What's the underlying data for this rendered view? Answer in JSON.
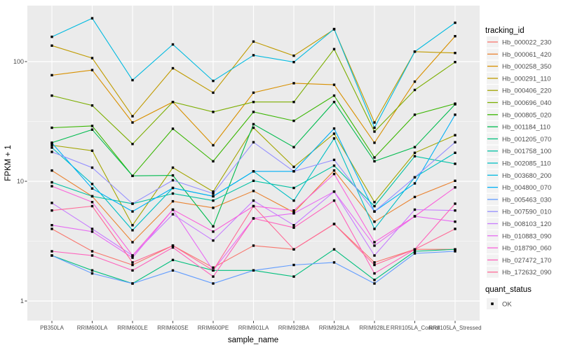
{
  "chart_data": {
    "type": "line",
    "title": "",
    "xlabel": "sample_name",
    "ylabel": "FPKM + 1",
    "yscale": "log10",
    "ylim": [
      1,
      250
    ],
    "y_ticks": [
      1,
      10,
      100
    ],
    "grid": true,
    "legend_position": "right",
    "legend_title": "tracking_id",
    "point_shape": "filled-square",
    "point_color": "#000000",
    "categories": [
      "PB350LA",
      "RRIM600LA",
      "RRIM600LE",
      "RRIM600SE",
      "RRIM600PE",
      "RRIM901LA",
      "RRIM928BA",
      "RRIM928LA",
      "RRIM928LE",
      "RRII105LA_Control",
      "RRII105LA_Stressed"
    ],
    "series": [
      {
        "name": "Hb_000022_230",
        "color": "#F8766D",
        "values": [
          4.0,
          2.6,
          2.0,
          2.9,
          1.9,
          2.9,
          2.7,
          4.4,
          2.1,
          2.7,
          2.7
        ]
      },
      {
        "name": "Hb_000061_420",
        "color": "#EA8331",
        "values": [
          12.3,
          7.5,
          3.1,
          6.8,
          6.0,
          8.3,
          5.5,
          12.3,
          4.6,
          7.4,
          10.1
        ]
      },
      {
        "name": "Hb_000258_350",
        "color": "#D89000",
        "values": [
          77,
          85,
          31,
          46,
          20,
          55,
          66,
          64,
          21,
          68,
          163
        ]
      },
      {
        "name": "Hb_000291_110",
        "color": "#C09B00",
        "values": [
          136,
          107,
          35,
          88,
          55,
          147,
          112,
          186,
          31,
          121,
          118
        ]
      },
      {
        "name": "Hb_000406_220",
        "color": "#A3A500",
        "values": [
          20,
          18,
          4.3,
          13,
          8.2,
          28,
          13.2,
          25,
          6.7,
          17.3,
          24.3
        ]
      },
      {
        "name": "Hb_000696_040",
        "color": "#7CAE00",
        "values": [
          52,
          43,
          20.5,
          46,
          38,
          46,
          46,
          127,
          26,
          58,
          99
        ]
      },
      {
        "name": "Hb_000805_020",
        "color": "#39B600",
        "values": [
          28,
          29,
          11.1,
          27.5,
          14.7,
          38,
          32,
          52,
          15.8,
          36,
          44.5
        ]
      },
      {
        "name": "Hb_001184_110",
        "color": "#00BB4E",
        "values": [
          21,
          27,
          11.1,
          11.2,
          4.2,
          30,
          19.3,
          46,
          14.7,
          19.3,
          44
        ]
      },
      {
        "name": "Hb_001205_070",
        "color": "#00BF7D",
        "values": [
          2.4,
          1.8,
          1.4,
          2.2,
          1.8,
          1.8,
          1.6,
          2.7,
          1.5,
          2.6,
          2.7
        ]
      },
      {
        "name": "Hb_001758_100",
        "color": "#00C1A3",
        "values": [
          9.8,
          7.5,
          6.5,
          7.9,
          6.9,
          10.1,
          8.8,
          13.5,
          6.2,
          16.2,
          14.0
        ]
      },
      {
        "name": "Hb_002085_110",
        "color": "#00BFC4",
        "values": [
          19.1,
          9.5,
          3.9,
          8.8,
          7.5,
          12.1,
          6.9,
          22.8,
          4.0,
          10.8,
          17.3
        ]
      },
      {
        "name": "Hb_003680_200",
        "color": "#00BAE0",
        "values": [
          161,
          230,
          70,
          139,
          69,
          113,
          99,
          187,
          28,
          121,
          211
        ]
      },
      {
        "name": "Hb_004800_070",
        "color": "#00B0F6",
        "values": [
          20.9,
          8.7,
          5.6,
          8.8,
          7.5,
          12.1,
          12.1,
          27.6,
          5.6,
          9.6,
          36
        ]
      },
      {
        "name": "Hb_005463_030",
        "color": "#619CFF",
        "values": [
          2.4,
          1.7,
          1.4,
          1.8,
          1.4,
          1.8,
          2.0,
          2.1,
          1.4,
          2.5,
          2.6
        ]
      },
      {
        "name": "Hb_007590_010",
        "color": "#9590FF",
        "values": [
          17.6,
          13.0,
          6.5,
          10.2,
          7.9,
          21.2,
          12.1,
          15.1,
          5.6,
          10.8,
          21.2
        ]
      },
      {
        "name": "Hb_008103_120",
        "color": "#C77CFF",
        "values": [
          6.6,
          4.0,
          2.4,
          5.3,
          3.2,
          6.9,
          4.3,
          8.2,
          2.4,
          5.8,
          5.7
        ]
      },
      {
        "name": "Hb_010883_090",
        "color": "#E76BF3",
        "values": [
          4.3,
          3.8,
          2.3,
          5.8,
          1.8,
          4.9,
          5.4,
          8.2,
          2.9,
          5.1,
          4.6
        ]
      },
      {
        "name": "Hb_018790_060",
        "color": "#FA62DB",
        "values": [
          9.1,
          6.7,
          2.4,
          5.8,
          3.8,
          6.2,
          5.7,
          11.5,
          3.1,
          5.1,
          8.9
        ]
      },
      {
        "name": "Hb_027472_170",
        "color": "#FF62BC",
        "values": [
          2.6,
          2.4,
          1.8,
          2.8,
          1.6,
          4.9,
          4.1,
          6.9,
          1.7,
          2.7,
          6.5
        ]
      },
      {
        "name": "Hb_172632_090",
        "color": "#FF6A98",
        "values": [
          5.7,
          6.2,
          2.1,
          2.9,
          1.8,
          6.2,
          2.7,
          4.4,
          2.0,
          2.7,
          4.0
        ]
      }
    ],
    "quant_legend": {
      "title": "quant_status",
      "items": [
        "OK"
      ]
    }
  },
  "colors": {
    "panel_bg": "#EBEBEB",
    "grid": "#FFFFFF",
    "tick_text": "#4D4D4D",
    "axis_title_text": "#000000",
    "point": "#000000",
    "legend_key_bg": "#F2F2F2",
    "tick_mark": "#333333"
  }
}
